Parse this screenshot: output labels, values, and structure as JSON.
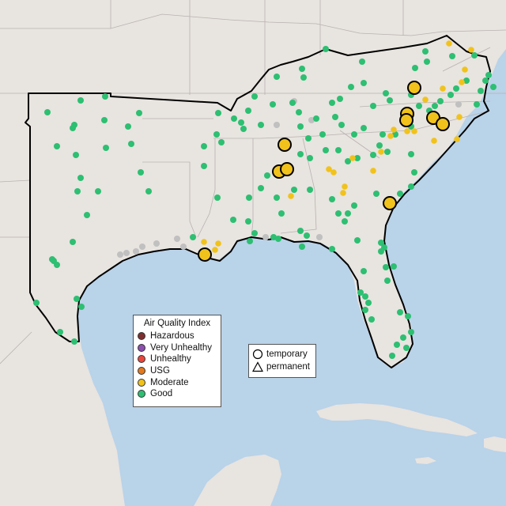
{
  "legend": {
    "title": "Air Quality Index",
    "categories": [
      {
        "label": "Hazardous",
        "color": "#7e2f2f"
      },
      {
        "label": "Very Unhealthy",
        "color": "#8d4fb0"
      },
      {
        "label": "Unhealthy",
        "color": "#e8473e"
      },
      {
        "label": "USG",
        "color": "#e27a1f"
      },
      {
        "label": "Moderate",
        "color": "#f1c21b"
      },
      {
        "label": "Good",
        "color": "#2dbf72"
      }
    ]
  },
  "shape_legend": {
    "temporary_label": "temporary",
    "permanent_label": "permanent"
  },
  "colors": {
    "land": "#e8e4df",
    "water": "#b9d3e9",
    "no_data": "#c0c0c0",
    "state_line": "#b8b2b2",
    "region_outline": "#000000"
  }
}
